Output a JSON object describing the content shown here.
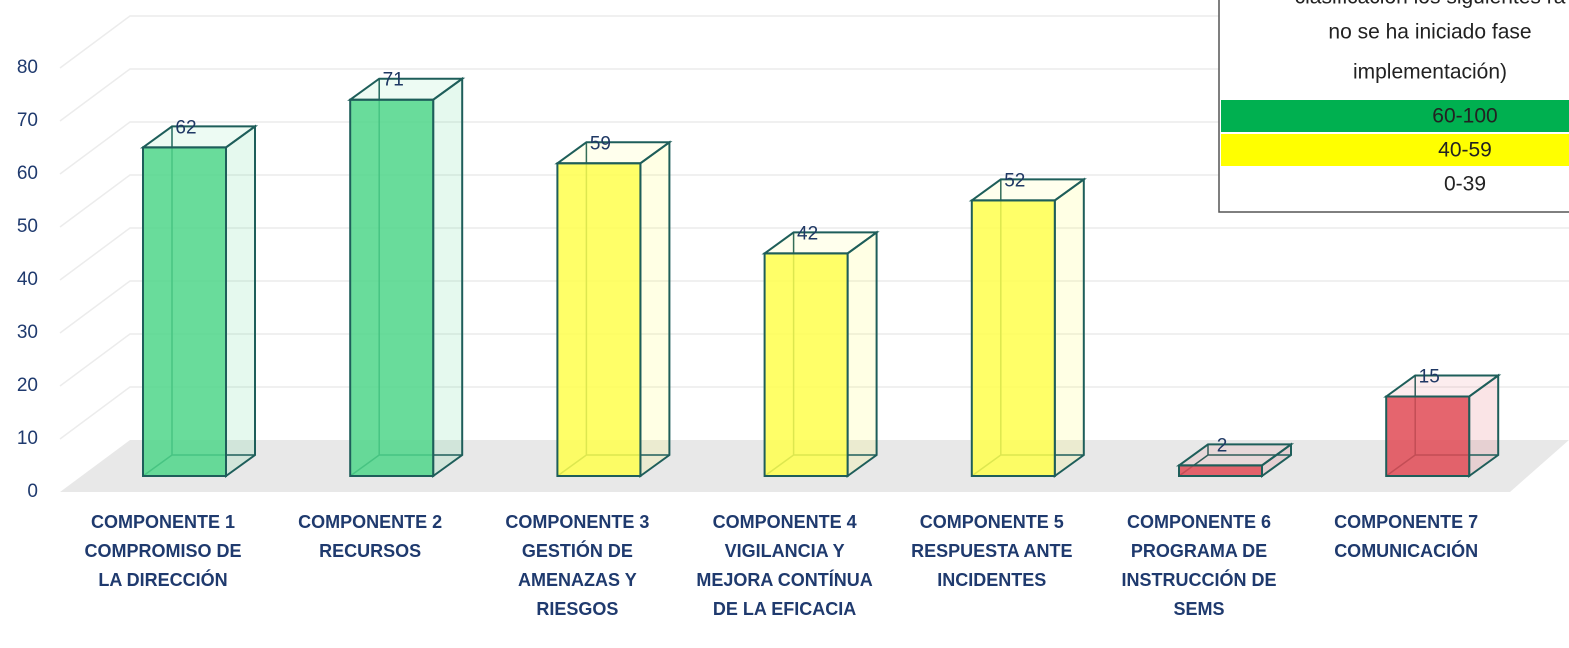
{
  "chart_data": {
    "type": "bar",
    "categories": [
      "COMPONENTE 1 COMPROMISO DE LA DIRECCIÓN",
      "COMPONENTE 2 RECURSOS",
      "COMPONENTE 3 GESTIÓN DE AMENAZAS Y RIESGOS",
      "COMPONENTE 4 VIGILANCIA Y MEJORA CONTÍNUA DE LA EFICACIA",
      "COMPONENTE 5 RESPUESTA ANTE INCIDENTES",
      "COMPONENTE 6 PROGRAMA DE INSTRUCCIÓN DE SEMS",
      "COMPONENTE 7 COMUNICACIÓN"
    ],
    "values": [
      62,
      71,
      59,
      42,
      52,
      2,
      15
    ],
    "colors": [
      "#4fd68a",
      "#4fd68a",
      "#ffff4d",
      "#ffff4d",
      "#ffff4d",
      "#e04a55",
      "#e04a55"
    ],
    "ylim": [
      0,
      80
    ],
    "yticks": [
      0,
      10,
      20,
      30,
      40,
      50,
      60,
      70,
      80
    ],
    "grid": true,
    "legend_text": [
      "clasificación los siguientes ra",
      "no se ha iniciado fase",
      "implementación)"
    ],
    "ranges": [
      {
        "label": "60-100",
        "color": "#00b050"
      },
      {
        "label": "40-59",
        "color": "#ffff00"
      },
      {
        "label": "0-39",
        "color": "#ff0000"
      }
    ]
  }
}
